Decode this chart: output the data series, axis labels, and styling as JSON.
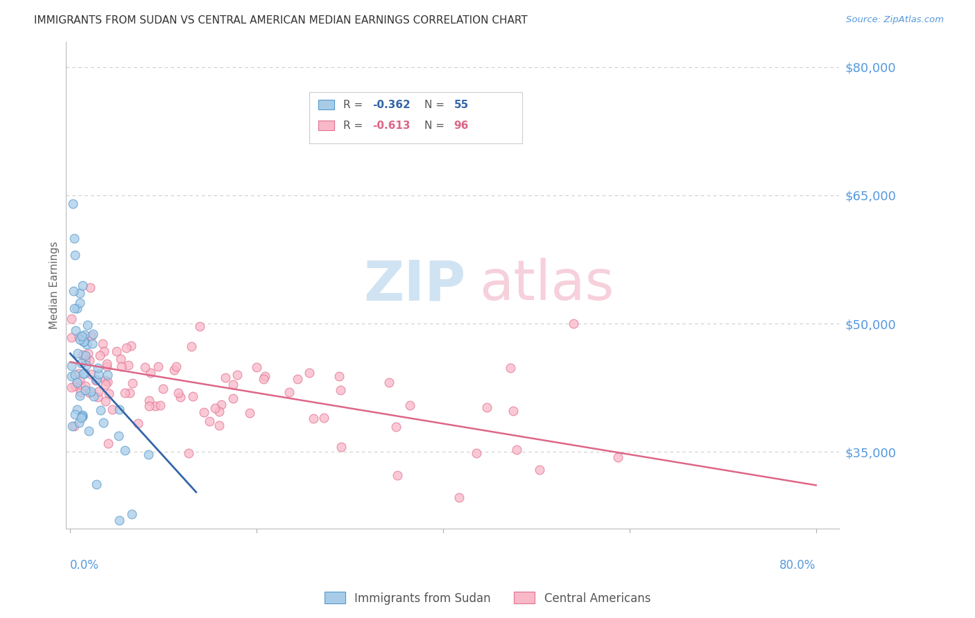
{
  "title": "IMMIGRANTS FROM SUDAN VS CENTRAL AMERICAN MEDIAN EARNINGS CORRELATION CHART",
  "source": "Source: ZipAtlas.com",
  "ylabel": "Median Earnings",
  "ytick_labels": [
    "$35,000",
    "$50,000",
    "$65,000",
    "$80,000"
  ],
  "ytick_values": [
    35000,
    50000,
    65000,
    80000
  ],
  "ymin": 26000,
  "ymax": 83000,
  "xmin": -0.005,
  "xmax": 0.825,
  "legend_label1": "Immigrants from Sudan",
  "legend_label2": "Central Americans",
  "blue_color": "#a8cce8",
  "blue_edge_color": "#5599cc",
  "blue_line_color": "#3366aa",
  "pink_color": "#f9b8c8",
  "pink_edge_color": "#e07090",
  "pink_line_color": "#dd6688",
  "grid_color": "#cccccc",
  "axis_label_color": "#5599dd",
  "watermark_zip_color": "#c8dff0",
  "watermark_atlas_color": "#f5c8d5"
}
